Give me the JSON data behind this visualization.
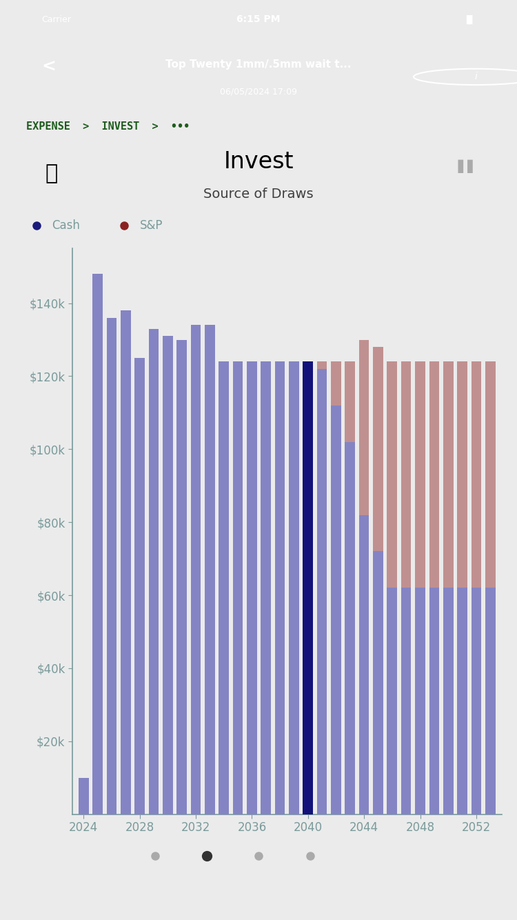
{
  "title": "Invest",
  "subtitle": "Source of Draws",
  "legend": [
    "Cash",
    "S&P"
  ],
  "legend_dot_colors": [
    "#1a1a7a",
    "#8b2222"
  ],
  "legend_text_color": "#7a9a9a",
  "years": [
    2024,
    2025,
    2026,
    2027,
    2028,
    2029,
    2030,
    2031,
    2032,
    2033,
    2034,
    2035,
    2036,
    2037,
    2038,
    2039,
    2040,
    2041,
    2042,
    2043,
    2044,
    2045,
    2046,
    2047,
    2048,
    2049,
    2050,
    2051,
    2052,
    2053
  ],
  "cash_values": [
    10000,
    148000,
    136000,
    138000,
    125000,
    133000,
    131000,
    130000,
    134000,
    134000,
    124000,
    124000,
    124000,
    124000,
    124000,
    124000,
    124000,
    122000,
    112000,
    102000,
    82000,
    72000,
    62000,
    62000,
    62000,
    62000,
    62000,
    62000,
    62000,
    62000
  ],
  "sp_values": [
    0,
    0,
    0,
    0,
    0,
    0,
    0,
    0,
    0,
    0,
    0,
    0,
    0,
    0,
    0,
    0,
    0,
    2000,
    12000,
    22000,
    48000,
    56000,
    62000,
    62000,
    62000,
    62000,
    62000,
    62000,
    62000,
    62000
  ],
  "highlight_year": 2040,
  "cash_color": "#8484c4",
  "sp_color": "#c09090",
  "highlight_color": "#12127a",
  "ylim": [
    0,
    155000
  ],
  "yticks": [
    20000,
    40000,
    60000,
    80000,
    100000,
    120000,
    140000
  ],
  "ytick_labels": [
    "$20k",
    "$40k",
    "$60k",
    "$80k",
    "$100k",
    "$120k",
    "$140k"
  ],
  "xtick_years": [
    2024,
    2028,
    2032,
    2036,
    2040,
    2044,
    2048,
    2052
  ],
  "background_color": "#ebebeb",
  "chart_bg_color": "#ebebeb",
  "axes_color": "#7a9a9a",
  "tick_fontsize": 12,
  "status_bar_color": "#1a1a1a",
  "nav_bar_color": "#1e5c1e",
  "nav_title": "Top Twenty 1mm/.5mm wait t...",
  "nav_date": "06/05/2024 17:09",
  "breadcrumb": "EXPENSE  >  INVEST  >  •••",
  "page_dots": 4,
  "active_dot": 1
}
